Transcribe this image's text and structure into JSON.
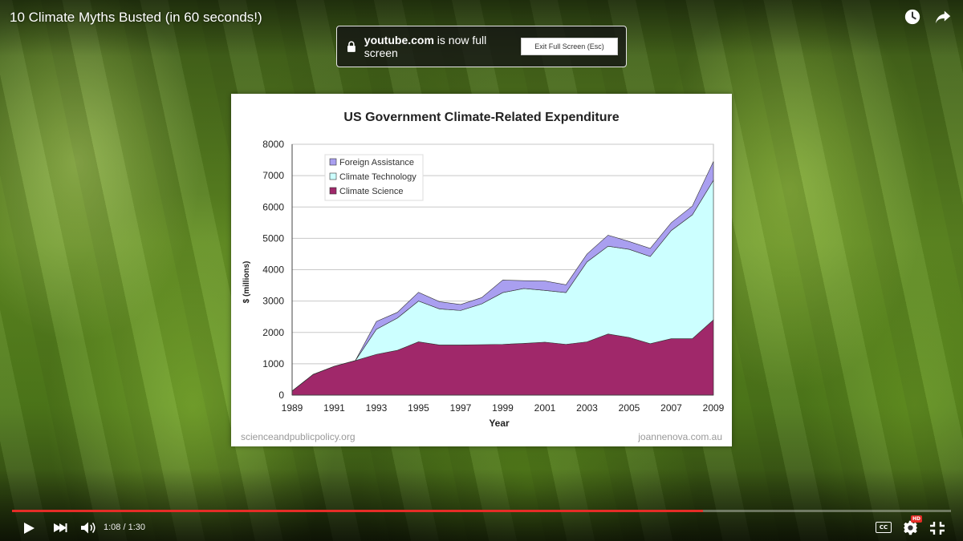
{
  "video": {
    "title": "10 Climate Myths Busted (in 60 seconds!)",
    "progress_fraction": 0.7356
  },
  "fullscreen_banner": {
    "domain": "youtube.com",
    "message": " is now full screen",
    "exit_button_label": "Exit Full Screen (Esc)"
  },
  "player": {
    "time_display": "1:08 / 1:30",
    "cc_label": "CC",
    "hd_badge": "HD"
  },
  "slide": {
    "source_left": "scienceandpublicpolicy.org",
    "source_right": "joannenova.com.au"
  },
  "chart_data": {
    "type": "area",
    "stacked": true,
    "title": "US Government Climate-Related Expenditure",
    "xlabel": "Year",
    "ylabel": "$ (millions)",
    "ylim": [
      0,
      8000
    ],
    "yticks": [
      0,
      1000,
      2000,
      3000,
      4000,
      5000,
      6000,
      7000,
      8000
    ],
    "xticks": [
      1989,
      1991,
      1993,
      1995,
      1997,
      1999,
      2001,
      2003,
      2005,
      2007,
      2009
    ],
    "legend_position": "top-left",
    "x": [
      1989,
      1990,
      1991,
      1992,
      1993,
      1994,
      1995,
      1996,
      1997,
      1998,
      1999,
      2000,
      2001,
      2002,
      2003,
      2004,
      2005,
      2006,
      2007,
      2008,
      2009
    ],
    "series": [
      {
        "name": "Climate Science",
        "color": "#a0286a",
        "values": [
          130,
          660,
          920,
          1100,
          1300,
          1430,
          1700,
          1600,
          1600,
          1610,
          1620,
          1650,
          1690,
          1620,
          1700,
          1950,
          1840,
          1640,
          1800,
          1800,
          2400
        ]
      },
      {
        "name": "Climate Technology",
        "color": "#ccffff",
        "values": [
          0,
          0,
          0,
          0,
          800,
          1030,
          1300,
          1150,
          1100,
          1300,
          1650,
          1750,
          1650,
          1650,
          2550,
          2800,
          2810,
          2780,
          3450,
          3950,
          4450
        ]
      },
      {
        "name": "Foreign Assistance",
        "color": "#a99ff0",
        "values": [
          0,
          0,
          0,
          0,
          250,
          180,
          280,
          230,
          190,
          200,
          400,
          250,
          300,
          250,
          250,
          350,
          250,
          260,
          250,
          280,
          600
        ]
      }
    ],
    "legend_order": [
      "Foreign Assistance",
      "Climate Technology",
      "Climate Science"
    ]
  }
}
